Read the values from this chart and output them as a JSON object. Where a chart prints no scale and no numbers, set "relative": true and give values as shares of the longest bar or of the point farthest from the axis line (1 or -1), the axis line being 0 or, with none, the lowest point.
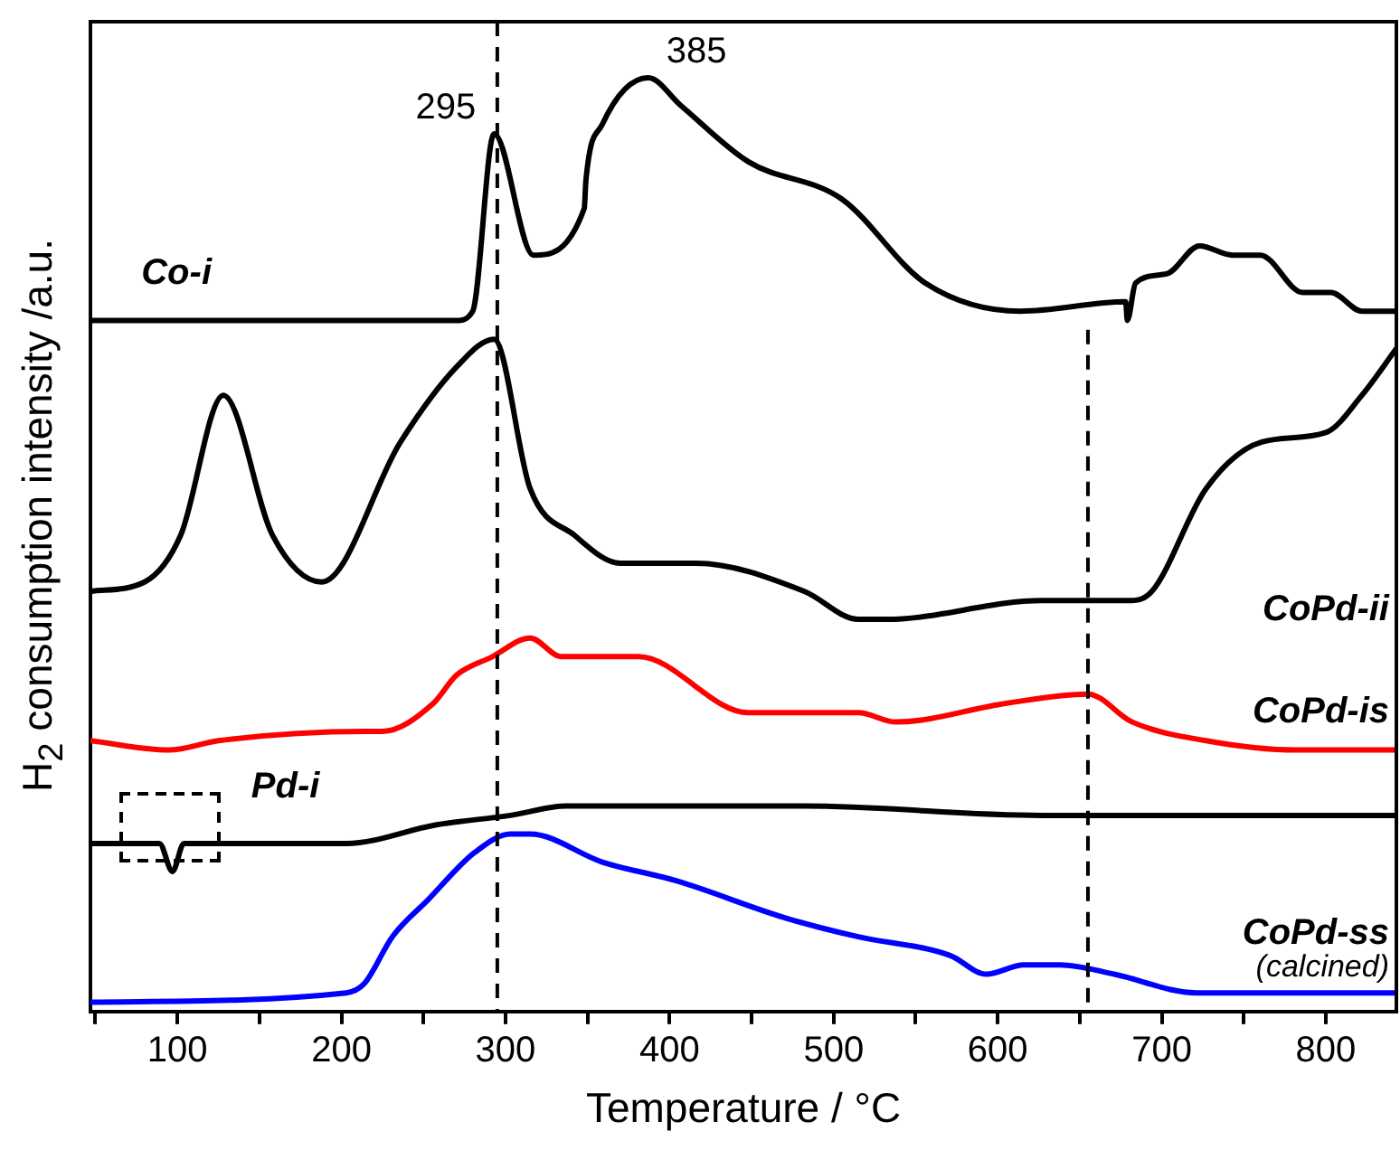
{
  "chart_data": {
    "type": "line",
    "xlabel": "Temperature / °C",
    "ylabel": "H$_{2}$ consumption intensity /a.u.",
    "relative": true,
    "legend": false,
    "grid": false,
    "marker": "none",
    "line_style": "solid",
    "xlim": [
      47,
      843
    ],
    "xticks": [
      {
        "value": 50,
        "label": null
      },
      100,
      {
        "value": 150,
        "label": null
      },
      200,
      {
        "value": 250,
        "label": null
      },
      300,
      {
        "value": 350,
        "label": null
      },
      400,
      {
        "value": 450,
        "label": null
      },
      500,
      {
        "value": 550,
        "label": null
      },
      600,
      {
        "value": 650,
        "label": null
      },
      700,
      {
        "value": 750,
        "label": null
      },
      800
    ],
    "series": [
      {
        "name": "Co-i",
        "color": "#000000",
        "x": [
          47,
          100,
          200,
          270,
          280,
          293,
          317,
          348,
          349,
          359,
          387,
          407,
          448,
          505,
          556,
          614,
          678,
          679,
          684,
          703,
          723,
          743,
          760,
          786,
          803,
          822,
          843
        ],
        "values": [
          0.74,
          0.74,
          0.74,
          0.74,
          0.75,
          0.94,
          0.81,
          0.86,
          0.89,
          0.95,
          1.0,
          0.97,
          0.91,
          0.87,
          0.78,
          0.75,
          0.76,
          0.74,
          0.78,
          0.79,
          0.82,
          0.81,
          0.81,
          0.77,
          0.77,
          0.75,
          0.75
        ]
      },
      {
        "name": "CoPd-ii",
        "color": "#000000",
        "x": [
          47,
          80,
          102,
          128,
          158,
          188,
          236,
          270,
          293,
          315,
          342,
          370,
          416,
          482,
          515,
          532,
          627,
          654,
          679,
          694,
          727,
          761,
          800,
          822,
          843
        ],
        "values": [
          0.45,
          0.46,
          0.51,
          0.66,
          0.51,
          0.46,
          0.61,
          0.69,
          0.72,
          0.56,
          0.51,
          0.48,
          0.48,
          0.45,
          0.42,
          0.42,
          0.44,
          0.44,
          0.44,
          0.45,
          0.56,
          0.61,
          0.62,
          0.66,
          0.71
        ]
      },
      {
        "name": "CoPd-is",
        "color": "#ff0000",
        "x": [
          47,
          95,
          125,
          214,
          225,
          256,
          270,
          292,
          315,
          334,
          348,
          381,
          448,
          515,
          538,
          605,
          655,
          682,
          727,
          782,
          843
        ],
        "values": [
          0.29,
          0.28,
          0.29,
          0.3,
          0.3,
          0.33,
          0.36,
          0.38,
          0.4,
          0.38,
          0.38,
          0.38,
          0.32,
          0.32,
          0.31,
          0.33,
          0.34,
          0.31,
          0.29,
          0.28,
          0.28
        ]
      },
      {
        "name": "Pd-i",
        "color": "#000000",
        "x": [
          47,
          89,
          97,
          104,
          203,
          258,
          303,
          337,
          482,
          627,
          843
        ],
        "values": [
          0.18,
          0.18,
          0.15,
          0.18,
          0.18,
          0.2,
          0.21,
          0.22,
          0.22,
          0.21,
          0.21
        ]
      },
      {
        "name": "CoPd-ss",
        "color": "#0000ff",
        "x": [
          47,
          203,
          214,
          231,
          253,
          281,
          303,
          315,
          359,
          404,
          471,
          515,
          571,
          593,
          616,
          638,
          671,
          721,
          761,
          843
        ],
        "values": [
          0.01,
          0.02,
          0.03,
          0.08,
          0.12,
          0.17,
          0.19,
          0.19,
          0.16,
          0.14,
          0.1,
          0.08,
          0.06,
          0.04,
          0.05,
          0.05,
          0.04,
          0.02,
          0.02,
          0.02
        ]
      }
    ],
    "ref_lines": [
      {
        "axis": "x",
        "value": 295,
        "color": "#000000",
        "line_style": "dashed"
      },
      {
        "axis": "x",
        "value": 655,
        "color": "#000000",
        "line_style": "dashed"
      }
    ],
    "annotations": [
      {
        "text": "295",
        "x": 293,
        "y": 0.94
      },
      {
        "text": "385",
        "x": 387,
        "y": 1.0
      },
      "(calcined)"
    ]
  }
}
